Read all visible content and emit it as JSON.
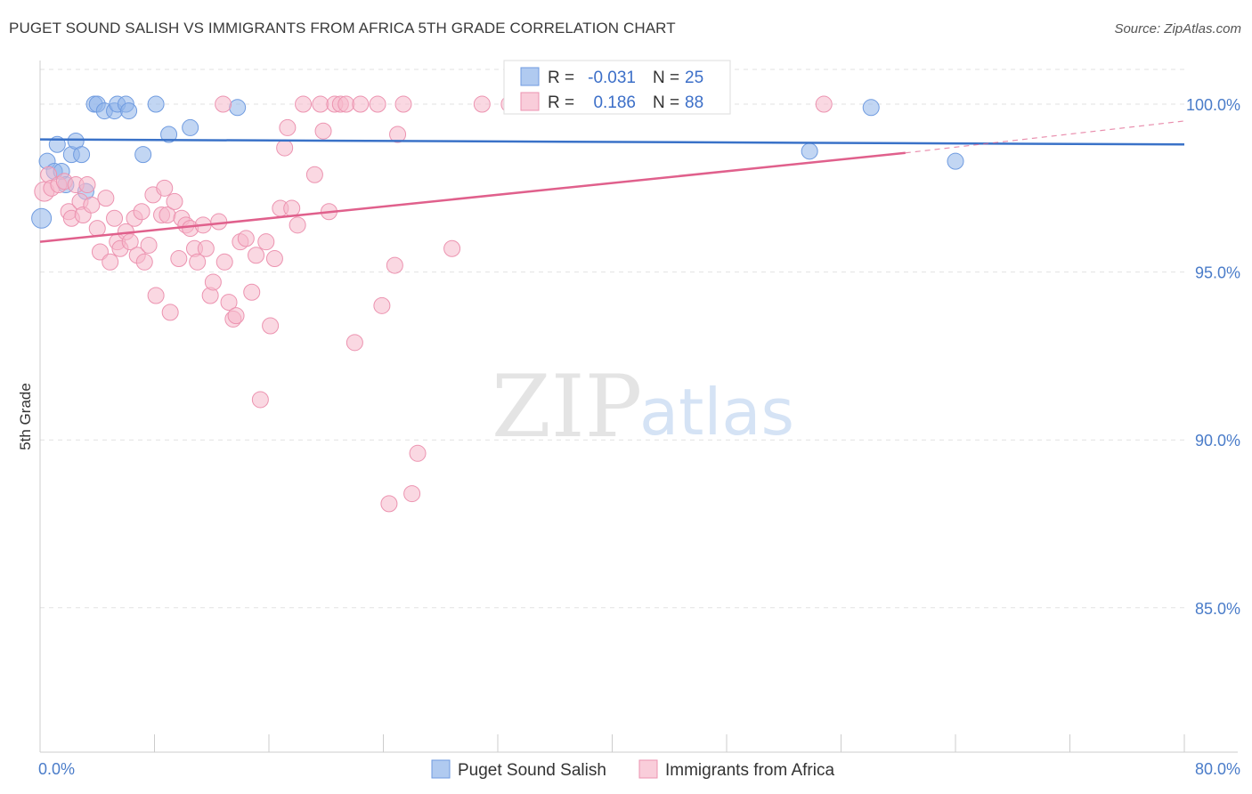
{
  "title": "PUGET SOUND SALISH VS IMMIGRANTS FROM AFRICA 5TH GRADE CORRELATION CHART",
  "source": "Source: ZipAtlas.com",
  "watermark": {
    "zip": "ZIP",
    "atlas": "atlas"
  },
  "chart_data": {
    "type": "scatter",
    "title": "PUGET SOUND SALISH VS IMMIGRANTS FROM AFRICA 5TH GRADE CORRELATION CHART",
    "xlabel": "",
    "ylabel": "5th Grade",
    "xlim": [
      0,
      80
    ],
    "ylim": [
      80.7,
      101.3
    ],
    "x_tick_labels": [
      {
        "value": 0,
        "label": "0.0%"
      },
      {
        "value": 80,
        "label": "80.0%"
      }
    ],
    "y_tick_labels": [
      {
        "value": 100,
        "label": "100.0%"
      },
      {
        "value": 95,
        "label": "95.0%"
      },
      {
        "value": 90,
        "label": "90.0%"
      },
      {
        "value": 85,
        "label": "85.0%"
      }
    ],
    "grid": true,
    "legend_position": "top-center",
    "series": [
      {
        "name": "Puget Sound Salish",
        "color": "#8fb4ea",
        "stroke": "#6f9be0",
        "line_color": "#3a72c8",
        "stats": {
          "r_label": "R =",
          "r": "-0.031",
          "n_label": "N =",
          "n": "25"
        },
        "trend": {
          "x0": 0,
          "y0": 98.95,
          "x1": 80,
          "y1": 98.8,
          "dashed_extension": false
        },
        "points": [
          [
            0.1,
            96.6
          ],
          [
            0.5,
            98.3
          ],
          [
            1.0,
            98.0
          ],
          [
            1.2,
            98.8
          ],
          [
            1.5,
            98.0
          ],
          [
            1.8,
            97.6
          ],
          [
            2.2,
            98.5
          ],
          [
            2.5,
            98.9
          ],
          [
            2.9,
            98.5
          ],
          [
            3.2,
            97.4
          ],
          [
            3.8,
            100.0
          ],
          [
            4.0,
            100.0
          ],
          [
            4.5,
            99.8
          ],
          [
            5.2,
            99.8
          ],
          [
            5.4,
            100.0
          ],
          [
            6.0,
            100.0
          ],
          [
            6.2,
            99.8
          ],
          [
            7.2,
            98.5
          ],
          [
            8.1,
            100.0
          ],
          [
            9.0,
            99.1
          ],
          [
            10.5,
            99.3
          ],
          [
            13.8,
            99.9
          ],
          [
            58.1,
            99.9
          ],
          [
            53.8,
            98.6
          ],
          [
            64.0,
            98.3
          ]
        ]
      },
      {
        "name": "Immigrants from Africa",
        "color": "#f6b8cb",
        "stroke": "#ec93b0",
        "line_color": "#e0608c",
        "stats": {
          "r_label": "R =",
          "r": "0.186",
          "n_label": "N =",
          "n": "88"
        },
        "trend": {
          "x0": 0,
          "y0": 95.9,
          "x1": 60.5,
          "y1": 98.55,
          "dashed_x1": 80,
          "dashed_y1": 99.5
        },
        "points": [
          [
            0.3,
            97.4
          ],
          [
            0.6,
            97.9
          ],
          [
            0.8,
            97.5
          ],
          [
            1.3,
            97.6
          ],
          [
            1.7,
            97.7
          ],
          [
            2.0,
            96.8
          ],
          [
            2.2,
            96.6
          ],
          [
            2.5,
            97.6
          ],
          [
            2.8,
            97.1
          ],
          [
            3.0,
            96.7
          ],
          [
            3.3,
            97.6
          ],
          [
            3.6,
            97.0
          ],
          [
            4.0,
            96.3
          ],
          [
            4.2,
            95.6
          ],
          [
            4.6,
            97.2
          ],
          [
            4.9,
            95.3
          ],
          [
            5.2,
            96.6
          ],
          [
            5.4,
            95.9
          ],
          [
            5.6,
            95.7
          ],
          [
            6.0,
            96.2
          ],
          [
            6.3,
            95.9
          ],
          [
            6.6,
            96.6
          ],
          [
            6.8,
            95.5
          ],
          [
            7.1,
            96.8
          ],
          [
            7.3,
            95.3
          ],
          [
            7.6,
            95.8
          ],
          [
            7.9,
            97.3
          ],
          [
            8.1,
            94.3
          ],
          [
            8.5,
            96.7
          ],
          [
            8.7,
            97.5
          ],
          [
            8.9,
            96.7
          ],
          [
            9.1,
            93.8
          ],
          [
            9.4,
            97.1
          ],
          [
            9.7,
            95.4
          ],
          [
            9.9,
            96.6
          ],
          [
            10.2,
            96.4
          ],
          [
            10.5,
            96.3
          ],
          [
            10.8,
            95.7
          ],
          [
            11.0,
            95.3
          ],
          [
            11.4,
            96.4
          ],
          [
            11.6,
            95.7
          ],
          [
            11.9,
            94.3
          ],
          [
            12.1,
            94.7
          ],
          [
            12.5,
            96.5
          ],
          [
            12.9,
            95.3
          ],
          [
            13.2,
            94.1
          ],
          [
            13.5,
            93.6
          ],
          [
            13.7,
            93.7
          ],
          [
            14.0,
            95.9
          ],
          [
            14.4,
            96.0
          ],
          [
            14.8,
            94.4
          ],
          [
            15.1,
            95.5
          ],
          [
            15.4,
            91.2
          ],
          [
            15.8,
            95.9
          ],
          [
            16.1,
            93.4
          ],
          [
            16.4,
            95.4
          ],
          [
            16.8,
            96.9
          ],
          [
            17.1,
            98.7
          ],
          [
            17.3,
            99.3
          ],
          [
            17.6,
            96.9
          ],
          [
            18.0,
            96.4
          ],
          [
            18.4,
            100.0
          ],
          [
            19.2,
            97.9
          ],
          [
            19.6,
            100.0
          ],
          [
            19.8,
            99.2
          ],
          [
            20.2,
            96.8
          ],
          [
            20.6,
            100.0
          ],
          [
            21.0,
            100.0
          ],
          [
            21.4,
            100.0
          ],
          [
            22.0,
            92.9
          ],
          [
            22.4,
            100.0
          ],
          [
            23.6,
            100.0
          ],
          [
            23.9,
            94.0
          ],
          [
            24.4,
            88.1
          ],
          [
            24.8,
            95.2
          ],
          [
            25.0,
            99.1
          ],
          [
            25.4,
            100.0
          ],
          [
            26.0,
            88.4
          ],
          [
            26.4,
            89.6
          ],
          [
            28.8,
            95.7
          ],
          [
            30.9,
            100.0
          ],
          [
            32.8,
            100.0
          ],
          [
            33.4,
            100.0
          ],
          [
            34.3,
            100.0
          ],
          [
            37.4,
            100.0
          ],
          [
            39.1,
            100.0
          ],
          [
            54.8,
            100.0
          ],
          [
            12.8,
            100.0
          ]
        ]
      }
    ]
  },
  "legend": {
    "bottom": [
      {
        "label": "Puget Sound Salish"
      },
      {
        "label": "Immigrants from Africa"
      }
    ]
  }
}
